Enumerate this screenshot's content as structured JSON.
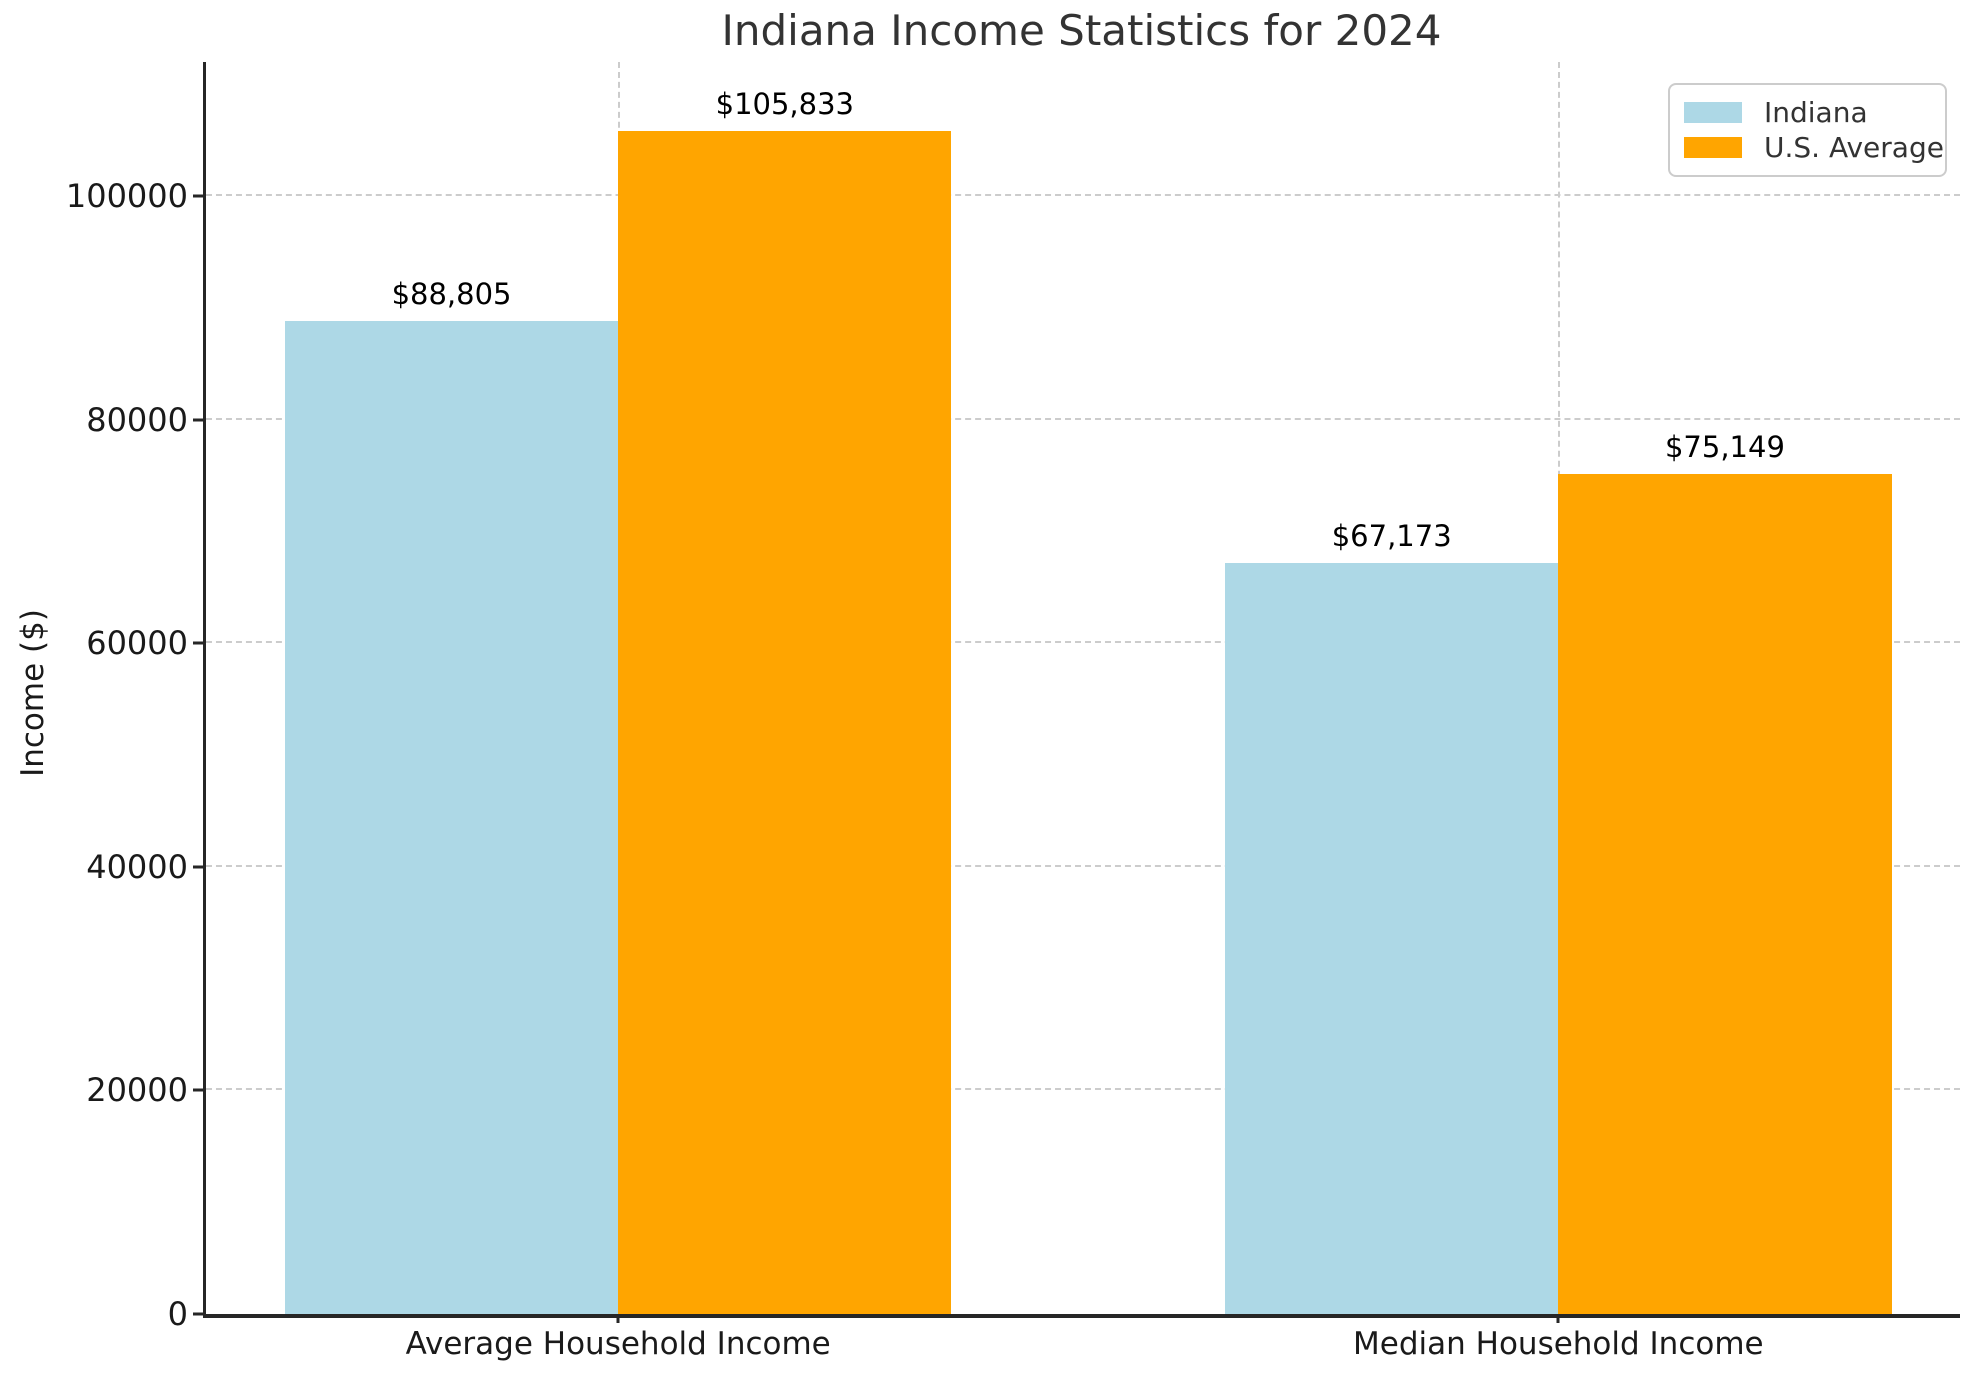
{
  "chart_data": {
    "type": "bar",
    "title": "Indiana Income Statistics for 2024",
    "ylabel": "Income ($)",
    "xlabel": "",
    "categories": [
      "Average Household Income",
      "Median Household Income"
    ],
    "series": [
      {
        "name": "Indiana",
        "color": "#ADD8E6",
        "values": [
          88805,
          67173
        ],
        "data_labels": [
          "$88,805",
          "$67,173"
        ]
      },
      {
        "name": "U.S. Average",
        "color": "#FFA500",
        "values": [
          105833,
          75149
        ],
        "data_labels": [
          "$105,833",
          "$75,149"
        ]
      }
    ],
    "yticks": [
      0,
      20000,
      40000,
      60000,
      80000,
      100000
    ],
    "ylim": [
      0,
      112000
    ],
    "grid": {
      "show": true,
      "style": "dashed",
      "color": "#cccccc",
      "horizontal": true,
      "vertical": true
    },
    "legend": {
      "position": "top-right",
      "entries": [
        "Indiana",
        "U.S. Average"
      ]
    },
    "axis_color": "#262626",
    "text_color": "#1a1a1a",
    "title_color": "#333333"
  }
}
